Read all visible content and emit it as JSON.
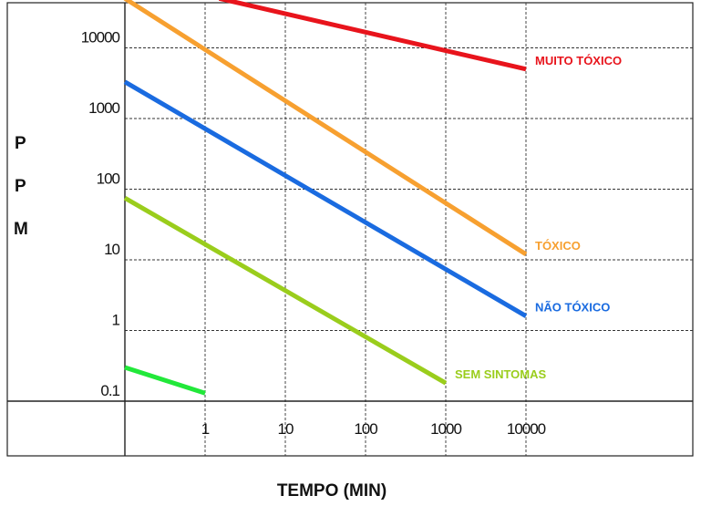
{
  "chart_data": {
    "type": "line",
    "title": "",
    "xlabel": "TEMPO (MIN)",
    "ylabel": "P P M",
    "ylabel_letters": [
      "P",
      "P",
      "M"
    ],
    "x_scale": "log",
    "y_scale": "log",
    "x_ticks": [
      "1",
      "10",
      "100",
      "1000",
      "10000"
    ],
    "y_ticks": [
      "10000",
      "1000",
      "100",
      "10",
      "1",
      "0.1"
    ],
    "xlim": [
      0.1,
      1000000
    ],
    "ylim": [
      0.1,
      50000
    ],
    "grid": true,
    "series": [
      {
        "name": "MUITO TÓXICO",
        "color": "#e8141c",
        "points": [
          [
            1.5,
            50000
          ],
          [
            10000,
            5000
          ]
        ]
      },
      {
        "name": "TÓXICO",
        "color": "#f7a030",
        "points": [
          [
            0.1,
            50000
          ],
          [
            10000,
            12
          ]
        ]
      },
      {
        "name": "NÃO TÓXICO",
        "color": "#1a6be0",
        "points": [
          [
            0.1,
            3300
          ],
          [
            10000,
            1.6
          ]
        ]
      },
      {
        "name": "SEM SINTOMAS",
        "color": "#9acd1c",
        "points": [
          [
            0.1,
            75
          ],
          [
            1000,
            0.18
          ]
        ]
      },
      {
        "name": "",
        "color": "#22e83a",
        "points": [
          [
            0.1,
            0.3
          ],
          [
            1,
            0.13
          ]
        ]
      }
    ]
  }
}
